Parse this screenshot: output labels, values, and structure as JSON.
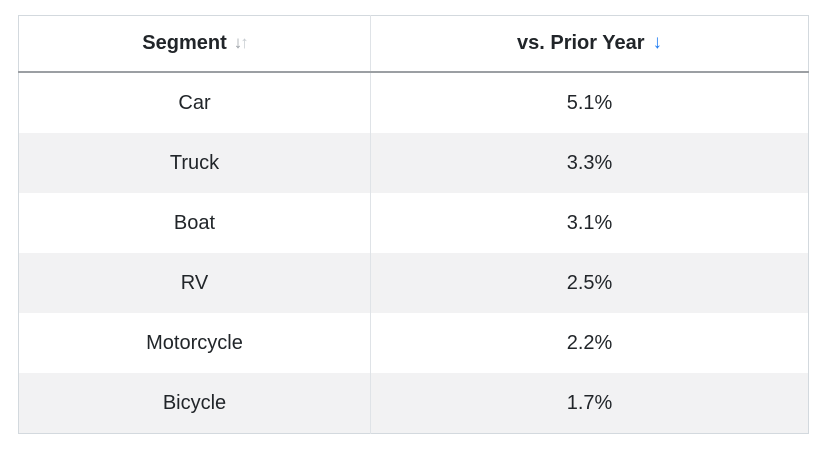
{
  "colors": {
    "accent_blue": "#1f7cf2",
    "stripe_row": "#f2f2f3",
    "header_underline": "#9b9fa3",
    "table_border": "#d3d9de",
    "column_divider": "#dfe3e7",
    "text": "#212529",
    "sort_inactive_dark": "#9ca1a7",
    "sort_inactive_light": "#c7ccd1"
  },
  "table": {
    "header": {
      "segment": {
        "label": "Segment",
        "sort_desc_icon": "↓",
        "sort_asc_icon": "↑"
      },
      "prior_year": {
        "label": "vs. Prior Year",
        "sort_icon": "↓"
      }
    },
    "rows": [
      {
        "segment": "Car",
        "value": "5.1%"
      },
      {
        "segment": "Truck",
        "value": "3.3%"
      },
      {
        "segment": "Boat",
        "value": "3.1%"
      },
      {
        "segment": "RV",
        "value": "2.5%"
      },
      {
        "segment": "Motorcycle",
        "value": "2.2%"
      },
      {
        "segment": "Bicycle",
        "value": "1.7%"
      }
    ]
  },
  "chart_data": {
    "type": "table",
    "columns": [
      "Segment",
      "vs. Prior Year"
    ],
    "categories": [
      "Car",
      "Truck",
      "Boat",
      "RV",
      "Motorcycle",
      "Bicycle"
    ],
    "values": [
      5.1,
      3.3,
      3.1,
      2.5,
      2.2,
      1.7
    ],
    "value_unit": "%"
  }
}
